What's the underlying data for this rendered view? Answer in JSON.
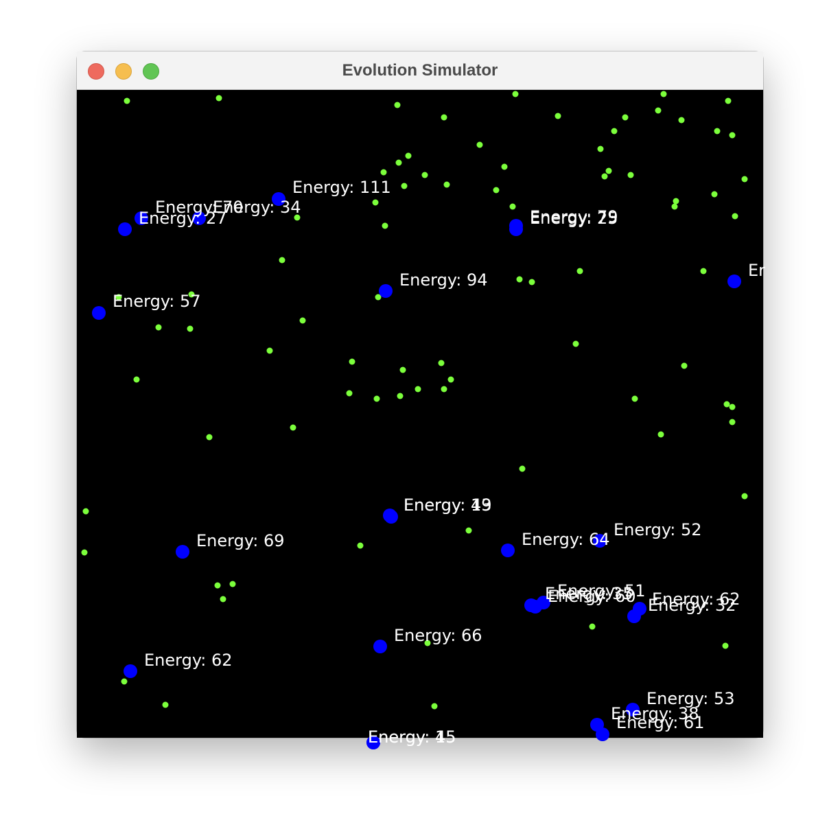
{
  "window": {
    "title": "Evolution Simulator"
  },
  "colors": {
    "background": "#000000",
    "creature": "#0000ff",
    "food": "#7cff3c",
    "label": "#ffffff"
  },
  "creature_labels": [
    "Energy: 111",
    "Energy: 70",
    "Energy: 34",
    "Energy: 27",
    "Energy: 79",
    "Energy: 25",
    "Energy: 94",
    "Energy: 57",
    "Energy: 19",
    "Energy: 43",
    "Energy: 69",
    "Energy: 64",
    "Energy: 52",
    "Energy: 35",
    "Energy: 60",
    "Energy: 51",
    "Energy: 62",
    "Energy: 32",
    "Energy: 66",
    "Energy: 62",
    "Energy: 53",
    "Energy: 38",
    "Energy: 61",
    "Energy: 15",
    "Energy: 45",
    "Er"
  ]
}
